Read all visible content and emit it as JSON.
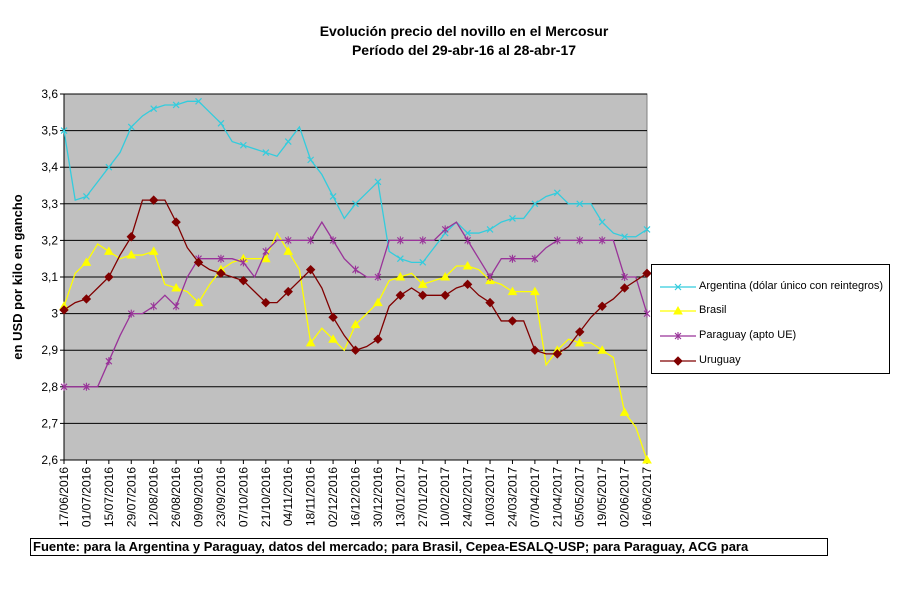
{
  "chart_data": {
    "type": "line",
    "title_lines": [
      "Evolución precio del novillo en el Mercosur",
      "Período del 29-abr-16 al 28-abr-17"
    ],
    "ylabel": "en USD por kilo en gancho",
    "xlabel": "",
    "ylim": [
      2.6,
      3.6
    ],
    "y_ticks": [
      "2,6",
      "2,7",
      "2,8",
      "2,9",
      "3",
      "3,1",
      "3,2",
      "3,3",
      "3,4",
      "3,5",
      "3,6"
    ],
    "x_tick_labels": [
      "17/06/2016",
      "01/07/2016",
      "15/07/2016",
      "29/07/2016",
      "12/08/2016",
      "26/08/2016",
      "09/09/2016",
      "23/09/2016",
      "07/10/2016",
      "21/10/2016",
      "04/11/2016",
      "18/11/2016",
      "02/12/2016",
      "16/12/2016",
      "30/12/2016",
      "13/01/2017",
      "27/01/2017",
      "10/02/2017",
      "24/02/2017",
      "10/03/2017",
      "24/03/2017",
      "07/04/2017",
      "21/04/2017",
      "05/05/2017",
      "19/05/2017",
      "02/06/2017",
      "16/06/2017"
    ],
    "grid": true,
    "legend_position": "right",
    "plot_background": "#c0c0c0",
    "series": [
      {
        "name": "Argentina (dólar único con reintegros)",
        "color": "#33ccdd",
        "marker": "x",
        "values": [
          3.5,
          3.31,
          3.32,
          3.36,
          3.4,
          3.44,
          3.51,
          3.54,
          3.56,
          3.57,
          3.57,
          3.58,
          3.58,
          3.55,
          3.52,
          3.47,
          3.46,
          3.45,
          3.44,
          3.43,
          3.47,
          3.51,
          3.42,
          3.38,
          3.32,
          3.26,
          3.3,
          3.33,
          3.36,
          3.17,
          3.15,
          3.14,
          3.14,
          3.18,
          3.22,
          3.25,
          3.22,
          3.22,
          3.23,
          3.25,
          3.26,
          3.26,
          3.3,
          3.32,
          3.33,
          3.3,
          3.3,
          3.3,
          3.25,
          3.22,
          3.21,
          3.21,
          3.23
        ]
      },
      {
        "name": "Brasil",
        "color": "#ffff00",
        "marker": "triangle",
        "values": [
          3.02,
          3.11,
          3.14,
          3.19,
          3.17,
          3.15,
          3.16,
          3.16,
          3.17,
          3.08,
          3.07,
          3.06,
          3.03,
          3.08,
          3.12,
          3.14,
          3.15,
          3.15,
          3.15,
          3.22,
          3.17,
          3.12,
          2.92,
          2.96,
          2.93,
          2.9,
          2.97,
          3.0,
          3.03,
          3.09,
          3.1,
          3.11,
          3.08,
          3.09,
          3.1,
          3.13,
          3.13,
          3.12,
          3.09,
          3.08,
          3.06,
          3.06,
          3.06,
          2.86,
          2.9,
          2.93,
          2.92,
          2.92,
          2.9,
          2.88,
          2.73,
          2.69,
          2.6
        ]
      },
      {
        "name": "Paraguay (apto UE)",
        "color": "#993399",
        "marker": "star",
        "values": [
          2.8,
          2.8,
          2.8,
          2.8,
          2.87,
          2.94,
          3.0,
          3.0,
          3.02,
          3.05,
          3.02,
          3.1,
          3.15,
          3.15,
          3.15,
          3.15,
          3.14,
          3.1,
          3.17,
          3.2,
          3.2,
          3.2,
          3.2,
          3.25,
          3.2,
          3.15,
          3.12,
          3.1,
          3.1,
          3.2,
          3.2,
          3.2,
          3.2,
          3.2,
          3.23,
          3.25,
          3.2,
          3.15,
          3.1,
          3.15,
          3.15,
          3.15,
          3.15,
          3.18,
          3.2,
          3.2,
          3.2,
          3.2,
          3.2,
          3.2,
          3.1,
          3.1,
          3.0
        ]
      },
      {
        "name": "Uruguay",
        "color": "#800000",
        "marker": "diamond",
        "values": [
          3.01,
          3.03,
          3.04,
          3.07,
          3.1,
          3.16,
          3.21,
          3.31,
          3.31,
          3.31,
          3.25,
          3.18,
          3.14,
          3.12,
          3.11,
          3.1,
          3.09,
          3.06,
          3.03,
          3.03,
          3.06,
          3.09,
          3.12,
          3.07,
          2.99,
          2.94,
          2.9,
          2.91,
          2.93,
          3.02,
          3.05,
          3.07,
          3.05,
          3.05,
          3.05,
          3.07,
          3.08,
          3.05,
          3.03,
          2.98,
          2.98,
          2.98,
          2.9,
          2.89,
          2.89,
          2.91,
          2.95,
          2.99,
          3.02,
          3.04,
          3.07,
          3.09,
          3.11
        ]
      }
    ]
  },
  "footnote": "Fuente: para la Argentina y Paraguay, datos del mercado; para Brasil, Cepea-ESALQ-USP; para Paraguay, ACG para"
}
